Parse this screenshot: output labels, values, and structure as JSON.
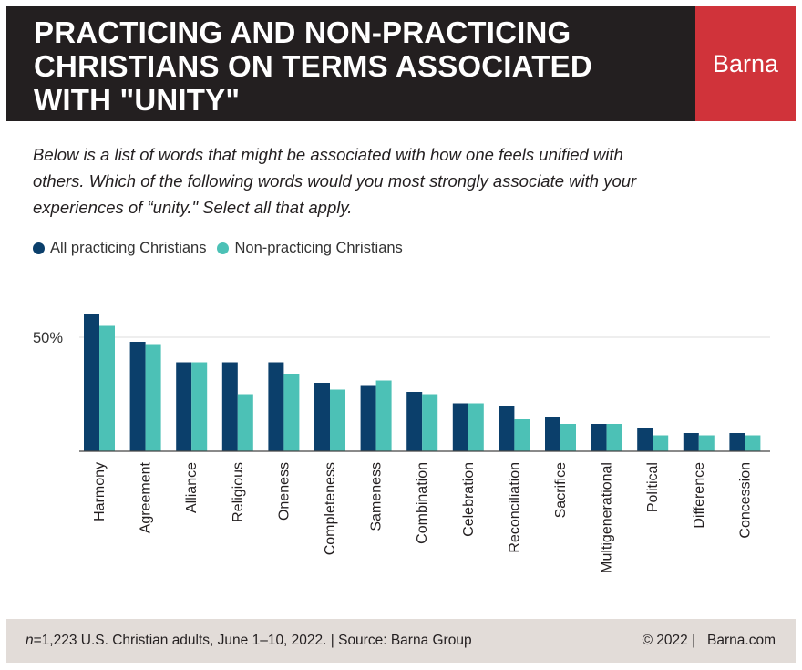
{
  "header": {
    "title_lines": [
      "PRACTICING AND NON-PRACTICING",
      "CHRISTIANS ON TERMS ASSOCIATED",
      "WITH \"UNITY\""
    ],
    "logo": "Barna",
    "colors": {
      "header_bg": "#231f20",
      "logo_bg": "#d0333a"
    }
  },
  "question_lines": [
    "Below is a list of words that might be associated with how one feels unified with",
    "others. Which of the following words would you most strongly associate with your",
    "experiences of “unity.\" Select all that apply."
  ],
  "legend": [
    {
      "label": "All practicing Christians",
      "color": "#0b3f6b"
    },
    {
      "label": "Non-practicing Christians",
      "color": "#4cc1b6"
    }
  ],
  "chart_data": {
    "type": "bar",
    "title": "",
    "xlabel": "",
    "ylabel": "",
    "ylim": [
      0,
      60
    ],
    "yticks": [
      {
        "value": 50,
        "label": "50%"
      }
    ],
    "categories": [
      "Harmony",
      "Agreement",
      "Alliance",
      "Religious",
      "Oneness",
      "Completeness",
      "Sameness",
      "Combination",
      "Celebration",
      "Reconciliation",
      "Sacrifice",
      "Multigenerational",
      "Political",
      "Difference",
      "Concession"
    ],
    "series": [
      {
        "name": "All practicing Christians",
        "color": "#0b3f6b",
        "values": [
          60,
          48,
          39,
          39,
          39,
          30,
          29,
          26,
          21,
          20,
          15,
          12,
          10,
          8,
          8
        ]
      },
      {
        "name": "Non-practicing Christians",
        "color": "#4cc1b6",
        "values": [
          55,
          47,
          39,
          25,
          34,
          27,
          31,
          25,
          21,
          14,
          12,
          12,
          7,
          7,
          7
        ]
      }
    ]
  },
  "footer": {
    "n_label": "n",
    "source": "=1,223 U.S. Christian adults, June 1–10, 2022. | Source: Barna Group",
    "copyright": "© 2022 |   Barna.com"
  }
}
